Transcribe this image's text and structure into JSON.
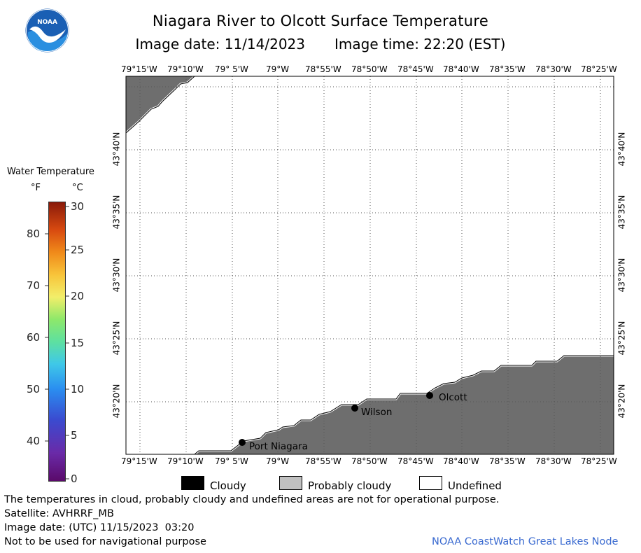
{
  "header": {
    "title": "Niagara River to Olcott Surface Temperature",
    "image_date": "Image date: 11/14/2023",
    "image_time": "Image time: 22:20 (EST)",
    "logo_text": "NOAA"
  },
  "map": {
    "lon_ticks_top": [
      "79°15'W",
      "79°10'W",
      "79° 5'W",
      "79°W",
      "78°55'W",
      "78°50'W",
      "78°45'W",
      "78°40'W",
      "78°35'W",
      "78°30'W",
      "78°25'W"
    ],
    "lon_ticks_bottom": [
      "79°15'W",
      "79°10'W",
      "79° 5'W",
      "79°W",
      "78°55'W",
      "78°50'W",
      "78°45'W",
      "78°40'W",
      "78°35'W",
      "78°30'W",
      "78°25'W"
    ],
    "lat_ticks_left": [
      "43°40'N",
      "43°35'N",
      "43°30'N",
      "43°25'N",
      "43°20'N"
    ],
    "lat_ticks_right": [
      "43°40'N",
      "43°35'N",
      "43°30'N",
      "43°25'N",
      "43°20'N"
    ],
    "places": [
      {
        "name": "Port Niagara"
      },
      {
        "name": "Wilson"
      },
      {
        "name": "Olcott"
      }
    ],
    "land_color": "#6e6e6e",
    "water_color": "#ffffff"
  },
  "legend": {
    "title": "Water Temperature",
    "unit_f": "°F",
    "unit_c": "°C",
    "f_labels": [
      "80",
      "70",
      "60",
      "50",
      "40"
    ],
    "c_labels": [
      "30",
      "25",
      "20",
      "15",
      "10",
      "5",
      "0"
    ]
  },
  "key": {
    "cloudy": "Cloudy",
    "probably_cloudy": "Probably cloudy",
    "undefined": "Undefined"
  },
  "footer": {
    "note": "The temperatures in cloud, probably cloudy and undefined areas are not for operational purpose.",
    "satellite": "Satellite: AVHRRF_MB",
    "utc_date": "Image date: (UTC) 11/15/2023  03:20",
    "nav_note": "Not to be used for navigational purpose",
    "credit": "NOAA CoastWatch Great Lakes Node"
  }
}
